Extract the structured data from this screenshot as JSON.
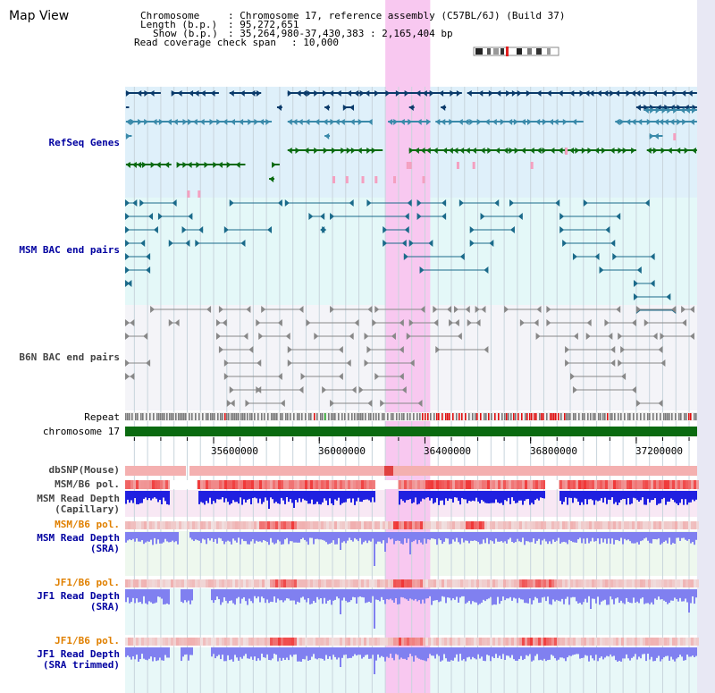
{
  "header": {
    "title": "Map View",
    "chromosome_key": "Chromosome",
    "chromosome_val": ": Chromosome 17, reference assembly (C57BL/6J) (Build 37)",
    "length_key": "Length (b.p.)",
    "length_val": ": 95,272,651",
    "show_key": "Show (b.p.)",
    "show_val": ": 35,264,980-37,430,383 : 2,165,404 bp",
    "coverage_key": "Read coverage check span",
    "coverage_val": ": 10,000"
  },
  "tracks": {
    "refseq": "RefSeq Genes",
    "msm_bac": "MSM BAC end pairs",
    "b6n_bac": "B6N BAC end pairs",
    "repeat": "Repeat",
    "chromosome": "chromosome 17",
    "dbsnp": "dbSNP(Mouse)",
    "msm_b6_pol_1": "MSM/B6 pol.",
    "msm_depth_cap_1": "MSM Read Depth",
    "msm_depth_cap_2": "(Capillary)",
    "msm_b6_pol_2": "MSM/B6 pol.",
    "msm_depth_sra_1": "MSM Read Depth",
    "msm_depth_sra_2": "(SRA)",
    "jf1_b6_pol_1": "JF1/B6 pol.",
    "jf1_depth_sra_1": "JF1 Read Depth",
    "jf1_depth_sra_2": "(SRA)",
    "jf1_b6_pol_2": "JF1/B6 pol.",
    "jf1_depth_trim_1": "JF1 Read Depth",
    "jf1_depth_trim_2": "(SRA trimmed)"
  },
  "axis": {
    "ticks": [
      "35600000",
      "36000000",
      "36400000",
      "36800000",
      "37200000"
    ],
    "tick_values": [
      35600000,
      36000000,
      36400000,
      36800000,
      37200000
    ],
    "range_start": 35264980,
    "range_end": 37430383
  },
  "highlight": {
    "start": 36250000,
    "end": 36420000
  },
  "colors": {
    "refseq_bg": "#dff0fa",
    "msm_bac_bg": "#e4f8f8",
    "b6n_bac_bg": "#f4f4f8",
    "highlight": "#f8c8f0",
    "gene_dark": "#0a3a6a",
    "gene_teal": "#3a8aaa",
    "gene_green": "#0a6a10",
    "gene_pink": "#f4a0c0",
    "bac_line": "#1a6a8a",
    "b6n_line": "#888888",
    "chrom_bar": "#0a6a10",
    "depth_dark": "#2020e0",
    "depth_light": "#8080f0",
    "snp_pink": "#f4b0b0",
    "pol_red": "#e02020"
  }
}
